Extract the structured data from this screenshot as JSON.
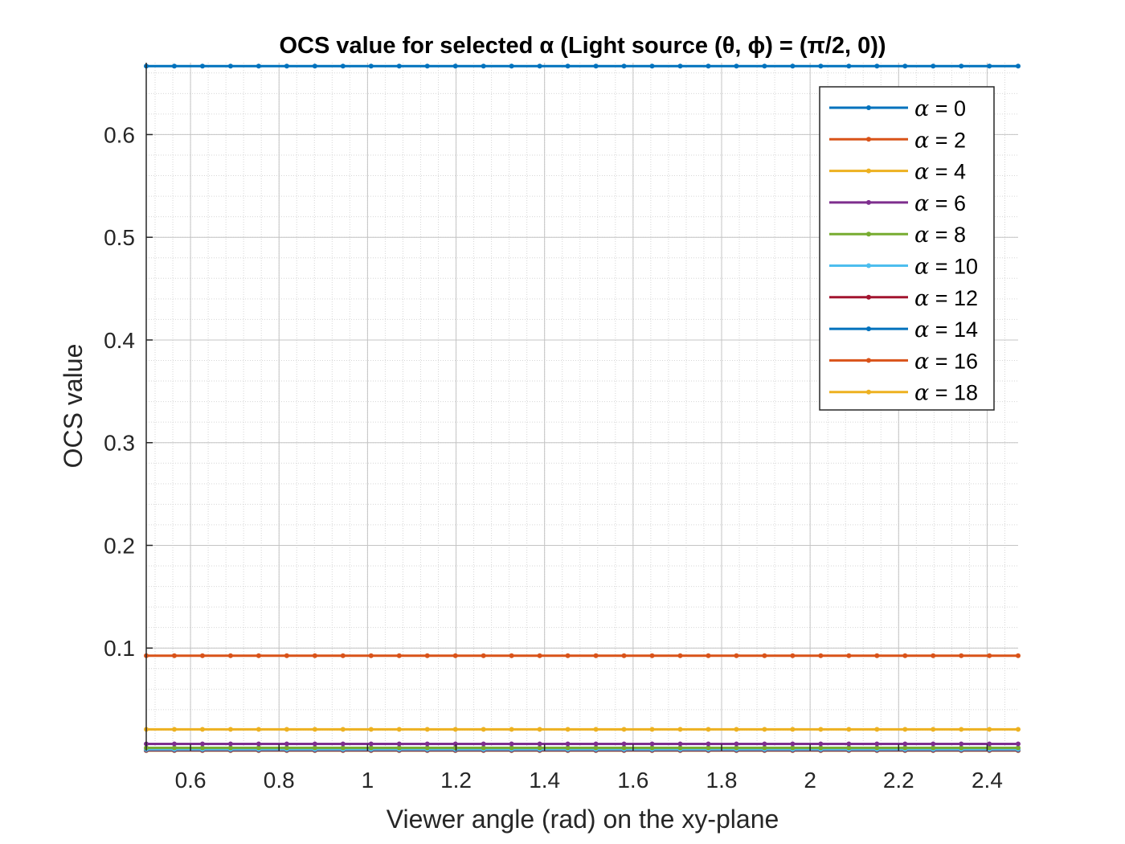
{
  "chart_data": {
    "type": "line",
    "title": "OCS value for selected α (Light source (θ, ϕ) = (π/2, 0))",
    "xlabel": "Viewer angle (rad) on the xy-plane",
    "ylabel": "OCS value",
    "xlim": [
      0.5,
      2.47
    ],
    "ylim": [
      0,
      0.67
    ],
    "xticks": [
      "0.6",
      "0.8",
      "1",
      "1.2",
      "1.4",
      "1.6",
      "1.8",
      "2",
      "2.2",
      "2.4"
    ],
    "yticks": [
      "0.1",
      "0.2",
      "0.3",
      "0.4",
      "0.5",
      "0.6"
    ],
    "grid": "on (major and minor)",
    "legend_position": "top-right",
    "x_start": 0.5,
    "x_step": 0.0635,
    "x_count": 32,
    "series": [
      {
        "name": "α = 0",
        "value": 0.6667,
        "color": "#0072BD"
      },
      {
        "name": "α = 2",
        "value": 0.0926,
        "color": "#D95319"
      },
      {
        "name": "α = 4",
        "value": 0.0208,
        "color": "#EDB120"
      },
      {
        "name": "α = 6",
        "value": 0.0067,
        "color": "#7E2F8E"
      },
      {
        "name": "α = 8",
        "value": 0.0028,
        "color": "#77AC30"
      },
      {
        "name": "α = 10",
        "value": 0.0014,
        "color": "#4DBEEE"
      },
      {
        "name": "α = 12",
        "value": 0.0008,
        "color": "#A2142F"
      },
      {
        "name": "α = 14",
        "value": 0.0005,
        "color": "#0072BD"
      },
      {
        "name": "α = 16",
        "value": 0.0003,
        "color": "#D95319"
      },
      {
        "name": "α = 18",
        "value": 0.0002,
        "color": "#EDB120"
      }
    ]
  }
}
